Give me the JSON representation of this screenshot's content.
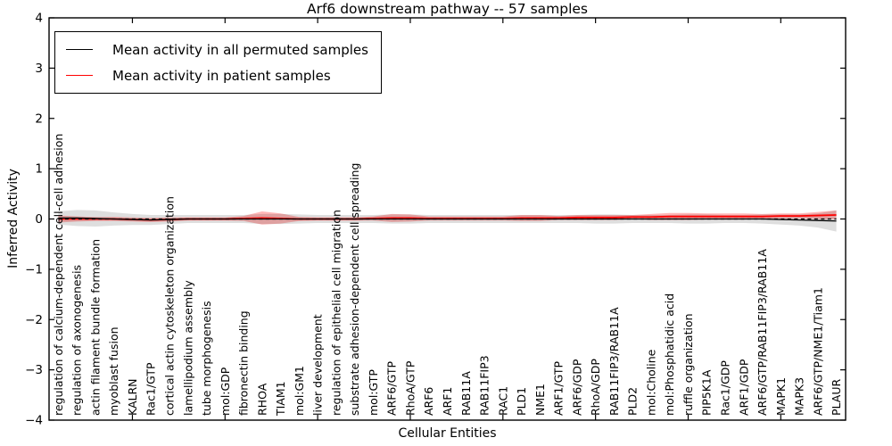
{
  "figure": {
    "title": "Arf6 downstream pathway -- 57 samples",
    "xlabel": "Cellular Entities",
    "ylabel": "Inferred Activity"
  },
  "legend": {
    "entries": [
      {
        "label": "Mean activity in all permuted samples",
        "color": "#000000"
      },
      {
        "label": "Mean activity in patient samples",
        "color": "#ff0000"
      }
    ]
  },
  "axes": {
    "ylim": [
      -4,
      4
    ],
    "y_tick_values": [
      4,
      3,
      2,
      1,
      0,
      -1,
      -2,
      -3,
      -4
    ],
    "y_tick_labels": [
      "4",
      "3",
      "2",
      "1",
      "0",
      "−1",
      "−2",
      "−3",
      "−4"
    ],
    "x_major_tick_positions": [
      5,
      10,
      15,
      20,
      25,
      30,
      35,
      40
    ]
  },
  "chart_data": {
    "type": "line",
    "title": "Arf6 downstream pathway -- 57 samples",
    "xlabel": "Cellular Entities",
    "ylabel": "Inferred Activity",
    "ylim": [
      -4,
      4
    ],
    "grid": false,
    "legend_position": "upper left",
    "categories": [
      "regulation of calcium-dependent cell-cell adhesion",
      "regulation of axonogenesis",
      "actin filament bundle formation",
      "myoblast fusion",
      "KALRN",
      "Rac1/GTP",
      "cortical actin cytoskeleton organization",
      "lamellipodium assembly",
      "tube morphogenesis",
      "mol:GDP",
      "fibronectin binding",
      "RHOA",
      "TIAM1",
      "mol:GM1",
      "liver development",
      "regulation of epithelial cell migration",
      "substrate adhesion-dependent cell spreading",
      "mol:GTP",
      "ARF6/GTP",
      "RhoA/GTP",
      "ARF6",
      "ARF1",
      "RAB11A",
      "RAB11FIP3",
      "RAC1",
      "PLD1",
      "NME1",
      "ARF1/GTP",
      "ARF6/GDP",
      "RhoA/GDP",
      "RAB11FIP3/RAB11A",
      "PLD2",
      "mol:Choline",
      "mol:Phosphatidic acid",
      "ruffle organization",
      "PIP5K1A",
      "Rac1/GDP",
      "ARF1/GDP",
      "ARF6/GTP/RAB11FIP3/RAB11A",
      "MAPK1",
      "MAPK3",
      "ARF6/GTP/NME1/Tiam1",
      "PLAUR"
    ],
    "series": [
      {
        "name": "Mean activity in all permuted samples",
        "color": "#000000",
        "style": "solid",
        "band_color": "rgba(0,0,0,0.13)",
        "values": [
          0.02,
          0.02,
          0.01,
          0,
          -0.01,
          -0.02,
          -0.01,
          0,
          0,
          0,
          0,
          0,
          0,
          0,
          0,
          0,
          0,
          0,
          0,
          0,
          0,
          0,
          0,
          0,
          0,
          0,
          0,
          0,
          0,
          0,
          0,
          0,
          0,
          0,
          0,
          0,
          0,
          0,
          0,
          -0.01,
          -0.02,
          -0.03,
          -0.04
        ],
        "band_halfwidth": [
          0.13,
          0.16,
          0.16,
          0.13,
          0.11,
          0.1,
          0.09,
          0.08,
          0.08,
          0.08,
          0.08,
          0.1,
          0.1,
          0.09,
          0.08,
          0.08,
          0.08,
          0.08,
          0.09,
          0.09,
          0.08,
          0.08,
          0.08,
          0.08,
          0.08,
          0.08,
          0.08,
          0.08,
          0.08,
          0.09,
          0.09,
          0.08,
          0.08,
          0.08,
          0.09,
          0.09,
          0.08,
          0.08,
          0.09,
          0.1,
          0.11,
          0.14,
          0.21
        ]
      },
      {
        "name": "Mean activity in patient samples",
        "color": "#ff0000",
        "style": "solid",
        "band_color": "rgba(255,0,0,0.28)",
        "values": [
          0,
          0,
          0,
          0,
          -0.01,
          -0.02,
          -0.01,
          0,
          0,
          0,
          0.01,
          0.02,
          0.01,
          0,
          0,
          0,
          0,
          0.01,
          0.02,
          0.02,
          0.01,
          0.01,
          0.01,
          0.01,
          0.01,
          0.02,
          0.02,
          0.02,
          0.03,
          0.03,
          0.03,
          0.04,
          0.04,
          0.05,
          0.05,
          0.05,
          0.05,
          0.05,
          0.05,
          0.06,
          0.06,
          0.07,
          0.08
        ],
        "band_halfwidth": [
          0.07,
          0.05,
          0.04,
          0.04,
          0.04,
          0.04,
          0.04,
          0.03,
          0.03,
          0.03,
          0.05,
          0.13,
          0.1,
          0.04,
          0.03,
          0.03,
          0.03,
          0.04,
          0.08,
          0.07,
          0.04,
          0.04,
          0.04,
          0.04,
          0.04,
          0.06,
          0.06,
          0.04,
          0.05,
          0.05,
          0.05,
          0.04,
          0.06,
          0.07,
          0.07,
          0.06,
          0.06,
          0.06,
          0.05,
          0.05,
          0.05,
          0.07,
          0.09
        ]
      }
    ],
    "reference_line": {
      "y": 0,
      "style": "dashed",
      "color": "#000000"
    }
  }
}
